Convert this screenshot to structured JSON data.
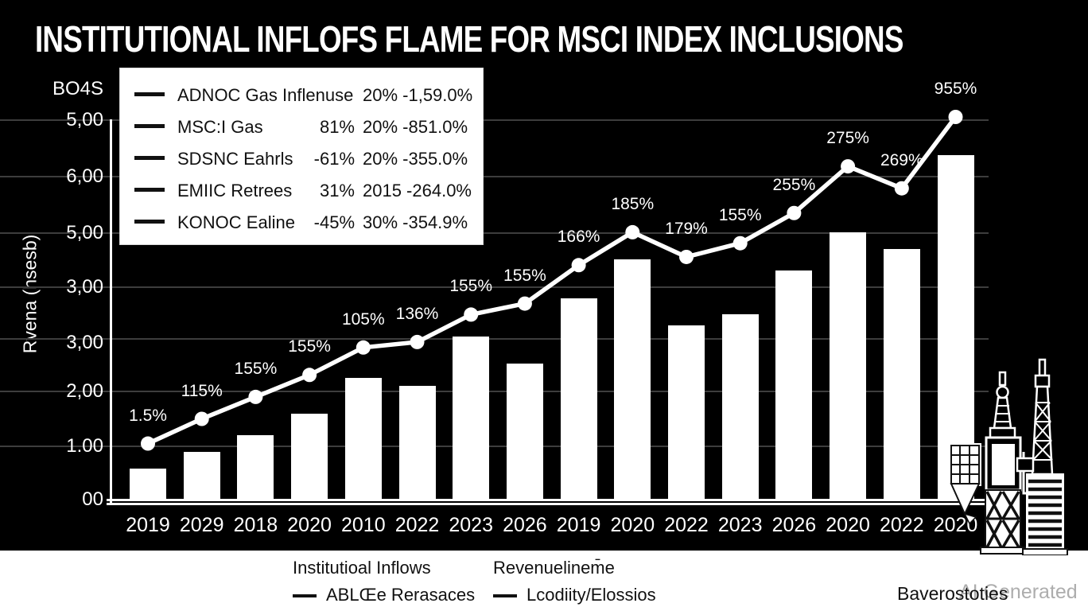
{
  "title": "INSTITUTIONAL INFLOFS FLAME FOR MSCI INDEX INCLUSIONS",
  "y_axis_title": "Rvena (hsesb)",
  "watermark": "AI Generated",
  "bottom_legend": {
    "col1_title": "Institutioal Inflows",
    "col1_item": "ABLŒe Rerasaces",
    "col2_title": "Revenuelinem̄e",
    "col2_item": "Lcodiity/Elossios",
    "right_text": "Baverostoties"
  },
  "colors": {
    "background": "#000000",
    "bar": "#ffffff",
    "line": "#ffffff",
    "grid": "#3d3d3d",
    "legend_bg": "#ffffff",
    "axis_text": "#ffffff",
    "bottom_text": "#111111",
    "watermark": "#adadad"
  },
  "chart_data": {
    "type": "bar+line combo",
    "title": "INSTITUTIONAL INFLOFS FLAME FOR MSCI INDEX INCLUSIONS",
    "categories": [
      "2019",
      "2029",
      "2018",
      "2020",
      "2010",
      "2022",
      "2023",
      "2026",
      "2019",
      "2020",
      "2022",
      "2023",
      "2026",
      "2020",
      "2022",
      "2020"
    ],
    "series": [
      {
        "name": "Institutioal Inflows",
        "type": "bar",
        "values": [
          0.6,
          0.9,
          1.2,
          1.6,
          2.25,
          2.1,
          3.0,
          2.5,
          3.7,
          4.4,
          3.2,
          3.4,
          4.2,
          4.9,
          4.6,
          6.3
        ]
      },
      {
        "name": "Revenue line",
        "type": "line",
        "values": [
          1.05,
          1.5,
          1.9,
          2.3,
          2.8,
          2.9,
          3.4,
          3.6,
          4.3,
          4.9,
          4.45,
          4.7,
          5.25,
          6.1,
          5.7,
          7.0
        ],
        "point_labels": [
          "1.5%",
          "115%",
          "155%",
          "155%",
          "105%",
          "136%",
          "155%",
          "155%",
          "166%",
          "185%",
          "179%",
          "155%",
          "255%",
          "275%",
          "269%",
          "955%"
        ]
      }
    ],
    "y_ticks": [
      "BO4S",
      "5,00",
      "6,00",
      "5,00",
      "3,00",
      "3,00",
      "2,00",
      "1.00",
      "00"
    ],
    "ylim_units": [
      0,
      7.7
    ],
    "grid": true,
    "legend": {
      "rows": [
        {
          "name": "ADNOC Gas Inflenuse",
          "val1": "",
          "val2": "20% -1,59.0%"
        },
        {
          "name": "MSC:I Gas",
          "val1": "81%",
          "val2": "20% -851.0%"
        },
        {
          "name": "SDSNC Eahrls",
          "val1": "-61%",
          "val2": "20% -355.0%"
        },
        {
          "name": "EMIIC Retrees",
          "val1": "31%",
          "val2": "2015 -264.0%"
        },
        {
          "name": "KONOC Ealine",
          "val1": "-45%",
          "val2": "30% -354.9%"
        }
      ]
    }
  }
}
